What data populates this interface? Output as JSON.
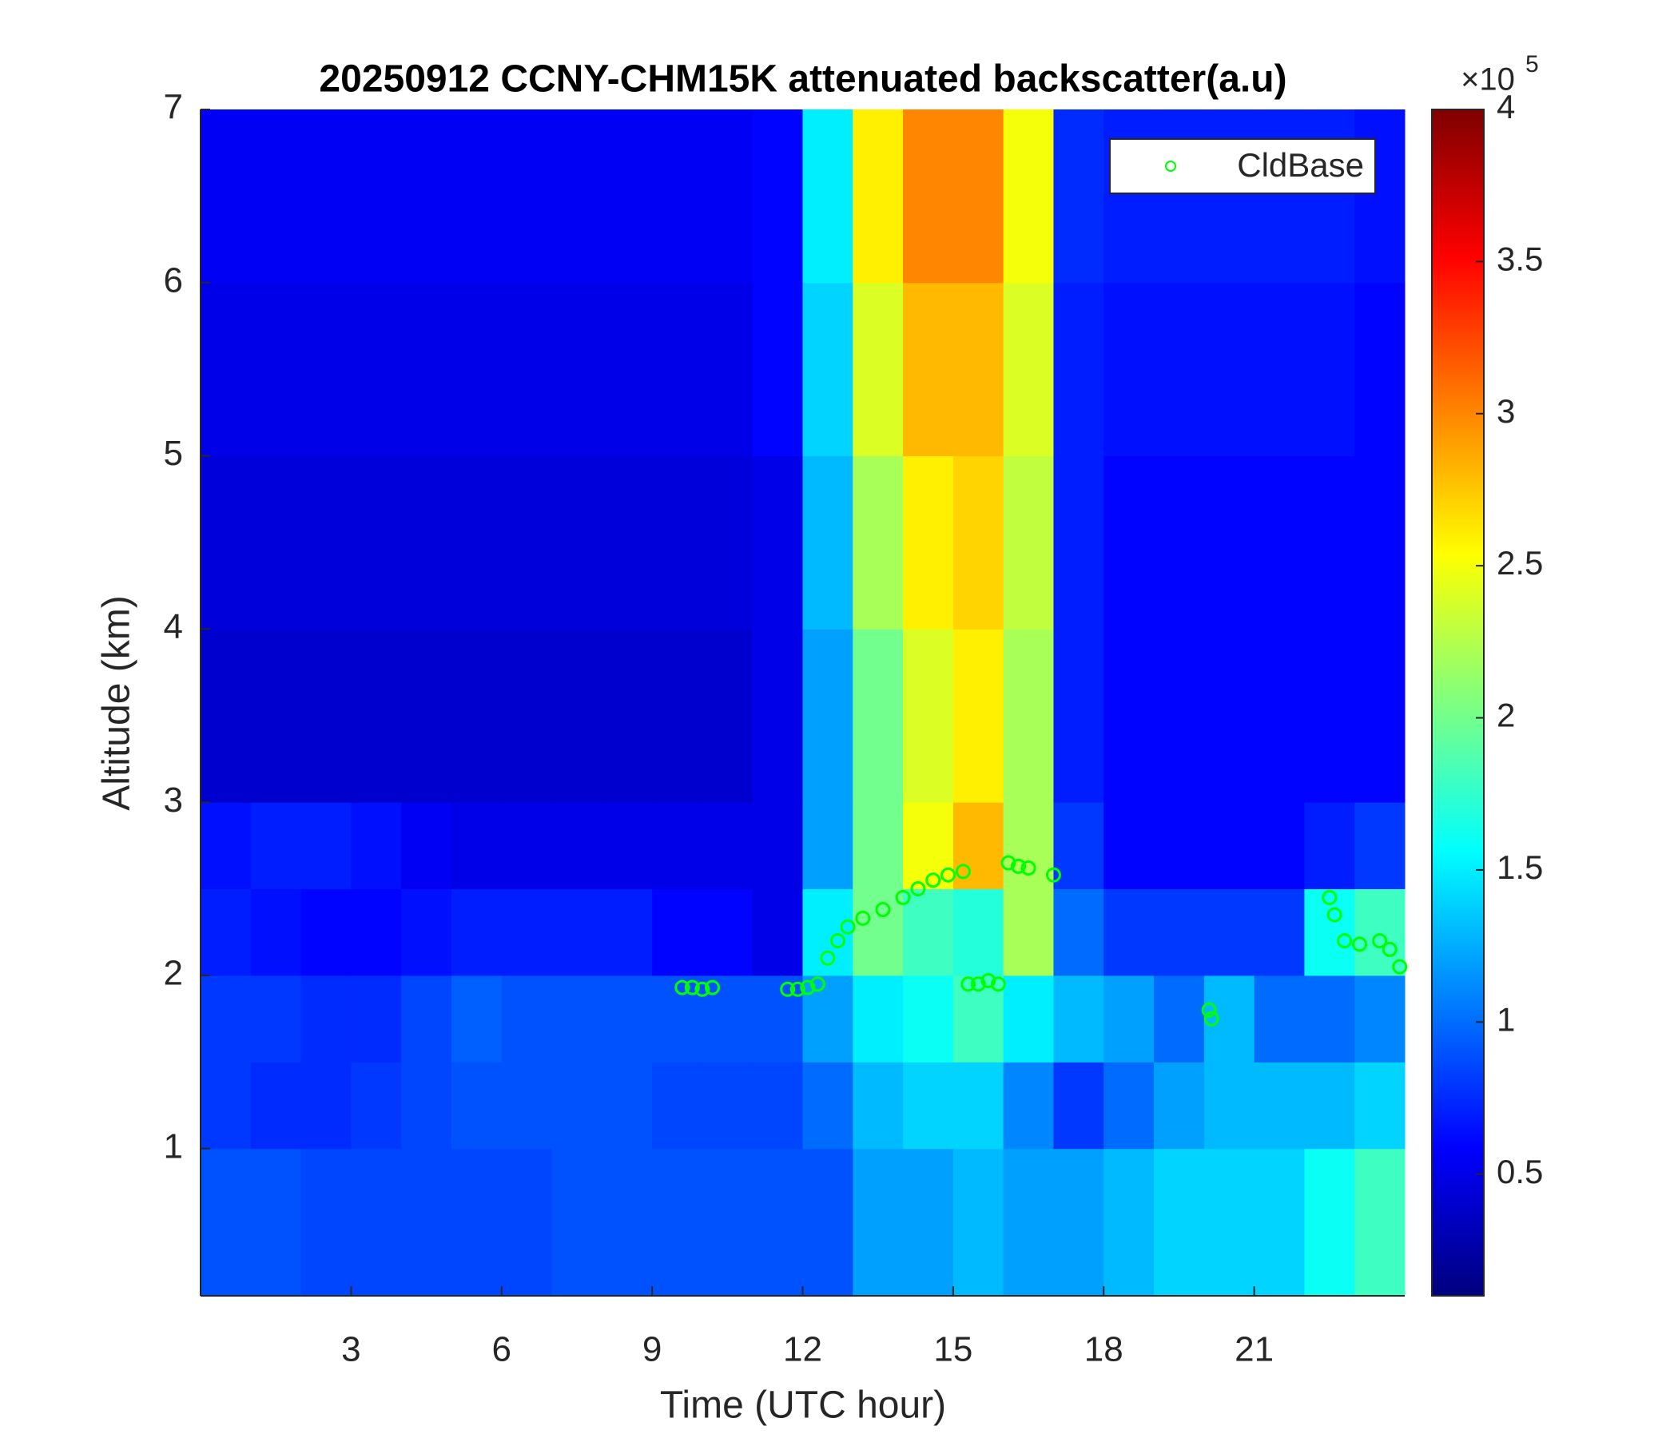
{
  "chart_data": {
    "type": "heatmap",
    "title": "20250912 CCNY-CHM15K attenuated backscatter(a.u)",
    "x_label": "Time (UTC hour)",
    "y_label": "Altitude (km)",
    "xlim": [
      0,
      24
    ],
    "ylim": [
      0.15,
      7
    ],
    "xticks": [
      3,
      6,
      9,
      12,
      15,
      18,
      21
    ],
    "yticks": [
      1,
      2,
      3,
      4,
      5,
      6,
      7
    ],
    "x_edges": [
      0,
      1,
      2,
      3,
      4,
      5,
      6,
      7,
      8,
      9,
      10,
      11,
      12,
      13,
      14,
      15,
      16,
      17,
      18,
      19,
      20,
      21,
      22,
      23,
      24
    ],
    "y_edges": [
      0.15,
      1,
      1.5,
      2,
      2.5,
      3,
      4,
      5,
      6,
      7
    ],
    "z": [
      [
        0.9,
        0.9,
        0.85,
        0.85,
        0.85,
        0.85,
        0.85,
        0.9,
        0.9,
        0.9,
        0.9,
        0.9,
        0.9,
        1.2,
        1.2,
        1.3,
        1.2,
        1.2,
        1.3,
        1.4,
        1.4,
        1.4,
        1.6,
        1.8
      ],
      [
        0.8,
        0.75,
        0.75,
        0.8,
        0.85,
        0.9,
        0.9,
        0.9,
        0.9,
        0.85,
        0.85,
        0.85,
        1.0,
        1.3,
        1.4,
        1.4,
        1.1,
        0.8,
        1.0,
        1.2,
        1.3,
        1.3,
        1.3,
        1.4
      ],
      [
        0.8,
        0.8,
        0.75,
        0.75,
        0.85,
        0.95,
        0.9,
        0.9,
        0.9,
        0.9,
        0.9,
        0.9,
        1.2,
        1.5,
        1.6,
        1.8,
        1.5,
        1.3,
        1.2,
        1.0,
        1.3,
        1.0,
        1.0,
        1.1
      ],
      [
        0.7,
        0.65,
        0.6,
        0.6,
        0.65,
        0.7,
        0.7,
        0.7,
        0.7,
        0.6,
        0.6,
        0.5,
        1.5,
        2.0,
        1.8,
        1.7,
        2.2,
        1.0,
        0.8,
        0.8,
        0.8,
        0.8,
        1.6,
        1.8
      ],
      [
        0.65,
        0.7,
        0.7,
        0.65,
        0.55,
        0.5,
        0.5,
        0.5,
        0.5,
        0.5,
        0.5,
        0.5,
        1.2,
        2.0,
        2.5,
        2.8,
        2.2,
        0.8,
        0.6,
        0.6,
        0.6,
        0.6,
        0.7,
        0.8
      ],
      [
        0.4,
        0.4,
        0.4,
        0.4,
        0.4,
        0.4,
        0.4,
        0.4,
        0.4,
        0.4,
        0.4,
        0.5,
        1.2,
        2.0,
        2.4,
        2.6,
        2.2,
        0.7,
        0.6,
        0.6,
        0.6,
        0.6,
        0.6,
        0.6
      ],
      [
        0.45,
        0.45,
        0.45,
        0.45,
        0.45,
        0.45,
        0.45,
        0.45,
        0.45,
        0.45,
        0.45,
        0.5,
        1.3,
        2.2,
        2.6,
        2.7,
        2.3,
        0.7,
        0.6,
        0.6,
        0.6,
        0.6,
        0.6,
        0.6
      ],
      [
        0.5,
        0.5,
        0.5,
        0.5,
        0.5,
        0.5,
        0.5,
        0.5,
        0.5,
        0.5,
        0.5,
        0.6,
        1.4,
        2.4,
        2.8,
        2.8,
        2.4,
        0.7,
        0.65,
        0.65,
        0.65,
        0.65,
        0.65,
        0.6
      ],
      [
        0.55,
        0.55,
        0.55,
        0.55,
        0.55,
        0.55,
        0.55,
        0.55,
        0.55,
        0.55,
        0.55,
        0.6,
        1.5,
        2.6,
        3.0,
        3.0,
        2.5,
        0.75,
        0.7,
        0.7,
        0.7,
        0.7,
        0.7,
        0.65
      ]
    ],
    "colormap": "jet",
    "clim": [
      0.1,
      4
    ],
    "colorbar_ticks": [
      0.5,
      1,
      1.5,
      2,
      2.5,
      3,
      3.5,
      4
    ],
    "colorbar_multiplier": "×10",
    "colorbar_exponent": "5",
    "legend": "northeast",
    "series": [
      {
        "name": "CldBase",
        "type": "scatter",
        "marker": "circle-open",
        "color": "#00ff00",
        "x": [
          9.6,
          9.8,
          10.0,
          10.2,
          11.7,
          11.9,
          12.1,
          12.3,
          12.5,
          12.7,
          12.9,
          13.2,
          13.6,
          14.0,
          14.3,
          14.6,
          14.9,
          15.2,
          15.3,
          15.5,
          15.7,
          15.9,
          16.1,
          16.3,
          16.5,
          17.0,
          20.1,
          20.15,
          22.5,
          22.6,
          22.8,
          23.1,
          23.5,
          23.7,
          23.9
        ],
        "values": [
          1.93,
          1.93,
          1.92,
          1.93,
          1.92,
          1.92,
          1.93,
          1.95,
          2.1,
          2.2,
          2.28,
          2.33,
          2.38,
          2.45,
          2.5,
          2.55,
          2.58,
          2.6,
          1.95,
          1.95,
          1.97,
          1.95,
          2.65,
          2.63,
          2.62,
          2.58,
          1.8,
          1.75,
          2.45,
          2.35,
          2.2,
          2.18,
          2.2,
          2.15,
          2.05
        ]
      }
    ]
  }
}
